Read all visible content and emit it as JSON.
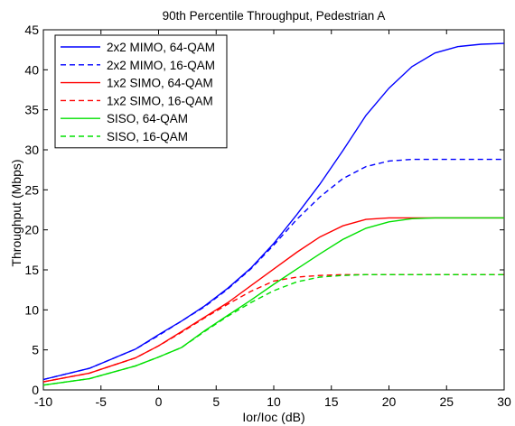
{
  "chart_data": {
    "type": "line",
    "title": "90th Percentile Throughput, Pedestrian A",
    "xlabel": "Ior/Ioc (dB)",
    "ylabel": "Throughput (Mbps)",
    "xlim": [
      -10,
      30
    ],
    "ylim": [
      0,
      45
    ],
    "xticks": [
      -10,
      -5,
      0,
      5,
      10,
      15,
      20,
      25,
      30
    ],
    "yticks": [
      0,
      5,
      10,
      15,
      20,
      25,
      30,
      35,
      40,
      45
    ],
    "grid": false,
    "legend_position": "top-left",
    "series": [
      {
        "name": "2x2 MIMO, 64-QAM",
        "color": "#0000ff",
        "dash": "solid",
        "points": [
          [
            -10,
            1.3
          ],
          [
            -6,
            2.7
          ],
          [
            -2,
            5.1
          ],
          [
            0,
            6.9
          ],
          [
            2,
            8.6
          ],
          [
            4,
            10.5
          ],
          [
            6,
            12.7
          ],
          [
            8,
            15.2
          ],
          [
            10,
            18.3
          ],
          [
            12,
            21.9
          ],
          [
            14,
            25.7
          ],
          [
            16,
            29.9
          ],
          [
            18,
            34.3
          ],
          [
            20,
            37.7
          ],
          [
            22,
            40.4
          ],
          [
            24,
            42.1
          ],
          [
            26,
            42.9
          ],
          [
            28,
            43.2
          ],
          [
            30,
            43.3
          ]
        ]
      },
      {
        "name": "2x2 MIMO, 16-QAM",
        "color": "#0000ff",
        "dash": "dashed",
        "points": [
          [
            -10,
            1.3
          ],
          [
            -6,
            2.7
          ],
          [
            -2,
            5.1
          ],
          [
            0,
            6.8
          ],
          [
            2,
            8.6
          ],
          [
            4,
            10.4
          ],
          [
            6,
            12.6
          ],
          [
            8,
            15.1
          ],
          [
            10,
            18.1
          ],
          [
            12,
            21.3
          ],
          [
            14,
            24.1
          ],
          [
            16,
            26.4
          ],
          [
            18,
            27.9
          ],
          [
            20,
            28.6
          ],
          [
            22,
            28.8
          ],
          [
            26,
            28.8
          ],
          [
            30,
            28.8
          ]
        ]
      },
      {
        "name": "1x2 SIMO, 64-QAM",
        "color": "#ff0000",
        "dash": "solid",
        "points": [
          [
            -10,
            1.0
          ],
          [
            -6,
            2.1
          ],
          [
            -2,
            4.0
          ],
          [
            0,
            5.5
          ],
          [
            2,
            7.3
          ],
          [
            4,
            9.1
          ],
          [
            6,
            10.9
          ],
          [
            8,
            13.0
          ],
          [
            10,
            15.1
          ],
          [
            12,
            17.2
          ],
          [
            14,
            19.1
          ],
          [
            16,
            20.5
          ],
          [
            18,
            21.3
          ],
          [
            20,
            21.5
          ],
          [
            25,
            21.5
          ],
          [
            30,
            21.5
          ]
        ]
      },
      {
        "name": "1x2 SIMO, 16-QAM",
        "color": "#ff0000",
        "dash": "dashed",
        "points": [
          [
            -10,
            1.0
          ],
          [
            -6,
            2.1
          ],
          [
            -2,
            4.0
          ],
          [
            0,
            5.5
          ],
          [
            2,
            7.2
          ],
          [
            4,
            9.0
          ],
          [
            6,
            10.7
          ],
          [
            8,
            12.3
          ],
          [
            10,
            13.6
          ],
          [
            12,
            14.1
          ],
          [
            14,
            14.3
          ],
          [
            16,
            14.4
          ],
          [
            20,
            14.4
          ],
          [
            30,
            14.4
          ]
        ]
      },
      {
        "name": "SISO, 64-QAM",
        "color": "#00e000",
        "dash": "solid",
        "points": [
          [
            -10,
            0.6
          ],
          [
            -6,
            1.4
          ],
          [
            -2,
            3.0
          ],
          [
            0,
            4.1
          ],
          [
            2,
            5.3
          ],
          [
            4,
            7.4
          ],
          [
            6,
            9.3
          ],
          [
            8,
            11.2
          ],
          [
            10,
            13.2
          ],
          [
            12,
            15.1
          ],
          [
            14,
            17.0
          ],
          [
            16,
            18.8
          ],
          [
            18,
            20.2
          ],
          [
            20,
            21.0
          ],
          [
            22,
            21.4
          ],
          [
            24,
            21.5
          ],
          [
            30,
            21.5
          ]
        ]
      },
      {
        "name": "SISO, 16-QAM",
        "color": "#00e000",
        "dash": "dashed",
        "points": [
          [
            -10,
            0.6
          ],
          [
            -6,
            1.4
          ],
          [
            -2,
            3.0
          ],
          [
            0,
            4.1
          ],
          [
            2,
            5.3
          ],
          [
            4,
            7.3
          ],
          [
            6,
            9.2
          ],
          [
            8,
            10.9
          ],
          [
            10,
            12.4
          ],
          [
            12,
            13.5
          ],
          [
            14,
            14.1
          ],
          [
            16,
            14.3
          ],
          [
            18,
            14.4
          ],
          [
            30,
            14.4
          ]
        ]
      }
    ]
  }
}
